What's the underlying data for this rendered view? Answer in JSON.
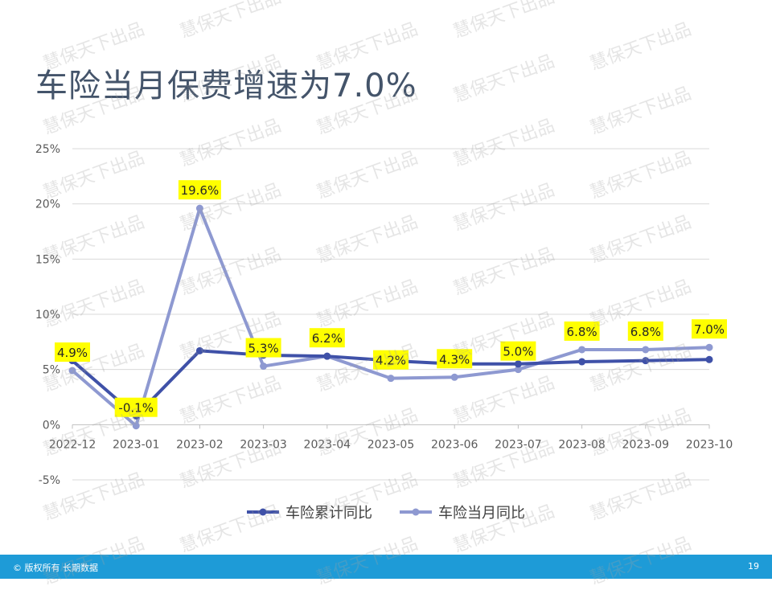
{
  "title": "车险当月保费增速为7.0%",
  "watermark": "慧保天下出品",
  "footer": {
    "copyright": "© 版权所有 长期数据",
    "page_number": "19"
  },
  "chart_data": {
    "type": "line",
    "x": [
      "2022-12",
      "2023-01",
      "2023-02",
      "2023-03",
      "2023-04",
      "2023-05",
      "2023-06",
      "2023-07",
      "2023-08",
      "2023-09",
      "2023-10"
    ],
    "ylim": [
      -5,
      25
    ],
    "yticks": [
      -5,
      0,
      5,
      10,
      15,
      20,
      25
    ],
    "ytick_labels": [
      "-5%",
      "0%",
      "5%",
      "10%",
      "15%",
      "20%",
      "25%"
    ],
    "grid": true,
    "legend_position": "bottom",
    "series": [
      {
        "name": "车险累计同比",
        "color": "#3F51A8",
        "values": [
          5.8,
          0.8,
          6.7,
          6.3,
          6.2,
          5.8,
          5.5,
          5.5,
          5.7,
          5.8,
          5.9
        ]
      },
      {
        "name": "车险当月同比",
        "color": "#8E99D1",
        "values": [
          4.9,
          -0.1,
          19.6,
          5.3,
          6.2,
          4.2,
          4.3,
          5.0,
          6.8,
          6.8,
          7.0
        ],
        "data_labels": [
          "4.9%",
          "-0.1%",
          "19.6%",
          "5.3%",
          "6.2%",
          "4.2%",
          "4.3%",
          "5.0%",
          "6.8%",
          "6.8%",
          "7.0%"
        ]
      }
    ],
    "label_bg": "#FFFF00"
  }
}
